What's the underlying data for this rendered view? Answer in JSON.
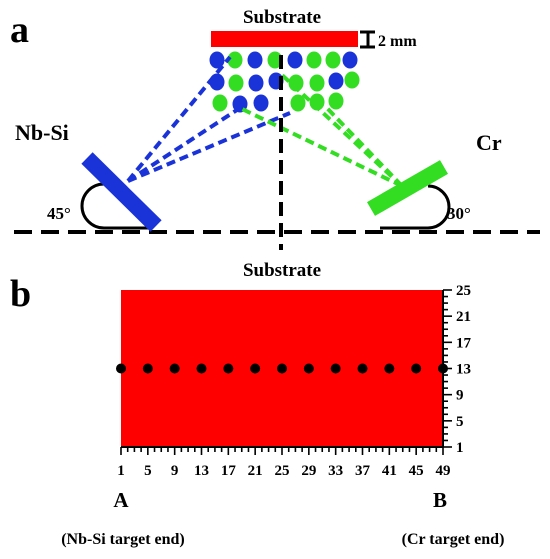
{
  "panel_a": {
    "letter": "a",
    "substrate_label": "Substrate",
    "thickness_label": "2 mm",
    "left_target_label": "Nb-Si",
    "right_target_label": "Cr",
    "left_angle_label": "45°",
    "right_angle_label": "30°"
  },
  "panel_b": {
    "letter": "b",
    "substrate_label": "Substrate",
    "x_ticks": [
      "1",
      "5",
      "9",
      "13",
      "17",
      "21",
      "25",
      "29",
      "33",
      "37",
      "41",
      "45",
      "49"
    ],
    "y_ticks": [
      "25",
      "21",
      "17",
      "13",
      "9",
      "5",
      "1"
    ],
    "point_count": 13,
    "row_value": 13,
    "end_a_label": "A",
    "end_b_label": "B",
    "end_a_caption": "(Nb-Si target end)",
    "end_b_caption": "(Cr target end)"
  },
  "colors": {
    "substrate": "#ff0000",
    "nbsi": "#1a33d9",
    "cr": "#33dd22",
    "ink": "#000000"
  }
}
